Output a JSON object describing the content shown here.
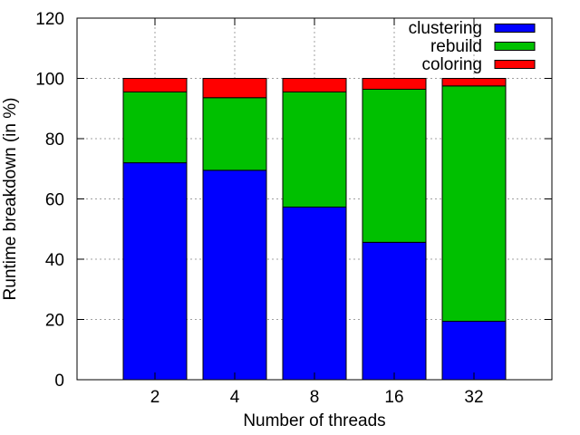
{
  "chart_data": {
    "type": "bar",
    "stacked": true,
    "categories": [
      "2",
      "4",
      "8",
      "16",
      "32"
    ],
    "series": [
      {
        "name": "clustering",
        "color": "#0000ff",
        "values": [
          72.0,
          69.5,
          57.3,
          45.6,
          19.4
        ]
      },
      {
        "name": "rebuild",
        "color": "#00c000",
        "values": [
          23.5,
          24.1,
          38.2,
          50.8,
          78.1
        ]
      },
      {
        "name": "coloring",
        "color": "#ff0000",
        "values": [
          4.5,
          6.4,
          4.5,
          3.6,
          2.5
        ]
      }
    ],
    "title": "",
    "xlabel": "Number of threads",
    "ylabel": "Runtime breakdown (in %)",
    "ylim": [
      0,
      120
    ],
    "yticks": [
      0,
      20,
      40,
      60,
      80,
      100,
      120
    ],
    "grid": true,
    "legend_position": "top-right"
  }
}
